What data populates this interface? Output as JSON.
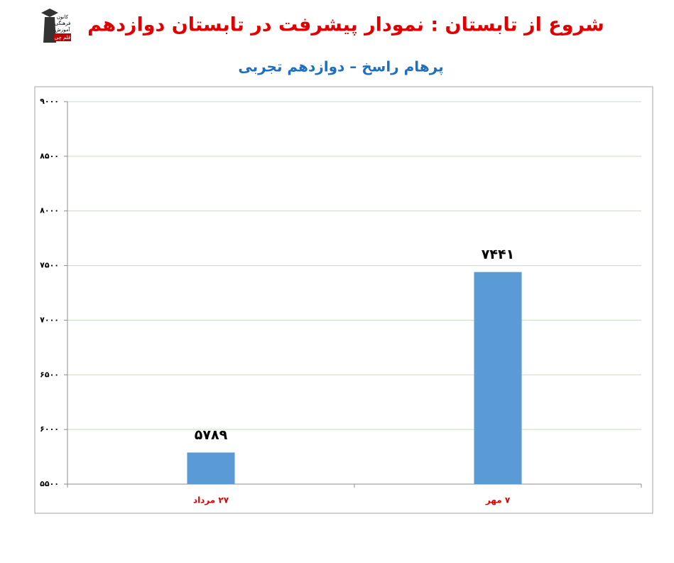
{
  "logo": {
    "lines": [
      "کانون",
      "فرهنگی",
      "آموزش"
    ],
    "badge": "قلم چی"
  },
  "chart_data": {
    "type": "bar",
    "title": "شروع از تابستان : نمودار پیشرفت در تابستان دوازدهم",
    "subtitle": "پرهام راسخ – دوازدهم تجربی",
    "categories": [
      "۲۷ مرداد",
      "۷ مهر"
    ],
    "values": [
      5789,
      7441
    ],
    "value_labels": [
      "۵۷۸۹",
      "۷۴۴۱"
    ],
    "color": "#5b9bd5",
    "ylim": [
      5500,
      9000
    ],
    "yticks": [
      {
        "value": 5500,
        "label": "۵۵۰۰"
      },
      {
        "value": 6000,
        "label": "۶۰۰۰"
      },
      {
        "value": 6500,
        "label": "۶۵۰۰"
      },
      {
        "value": 7000,
        "label": "۷۰۰۰"
      },
      {
        "value": 7500,
        "label": "۷۵۰۰"
      },
      {
        "value": 8000,
        "label": "۸۰۰۰"
      },
      {
        "value": 8500,
        "label": "۸۵۰۰"
      },
      {
        "value": 9000,
        "label": "۹۰۰۰"
      }
    ],
    "grid": true
  }
}
